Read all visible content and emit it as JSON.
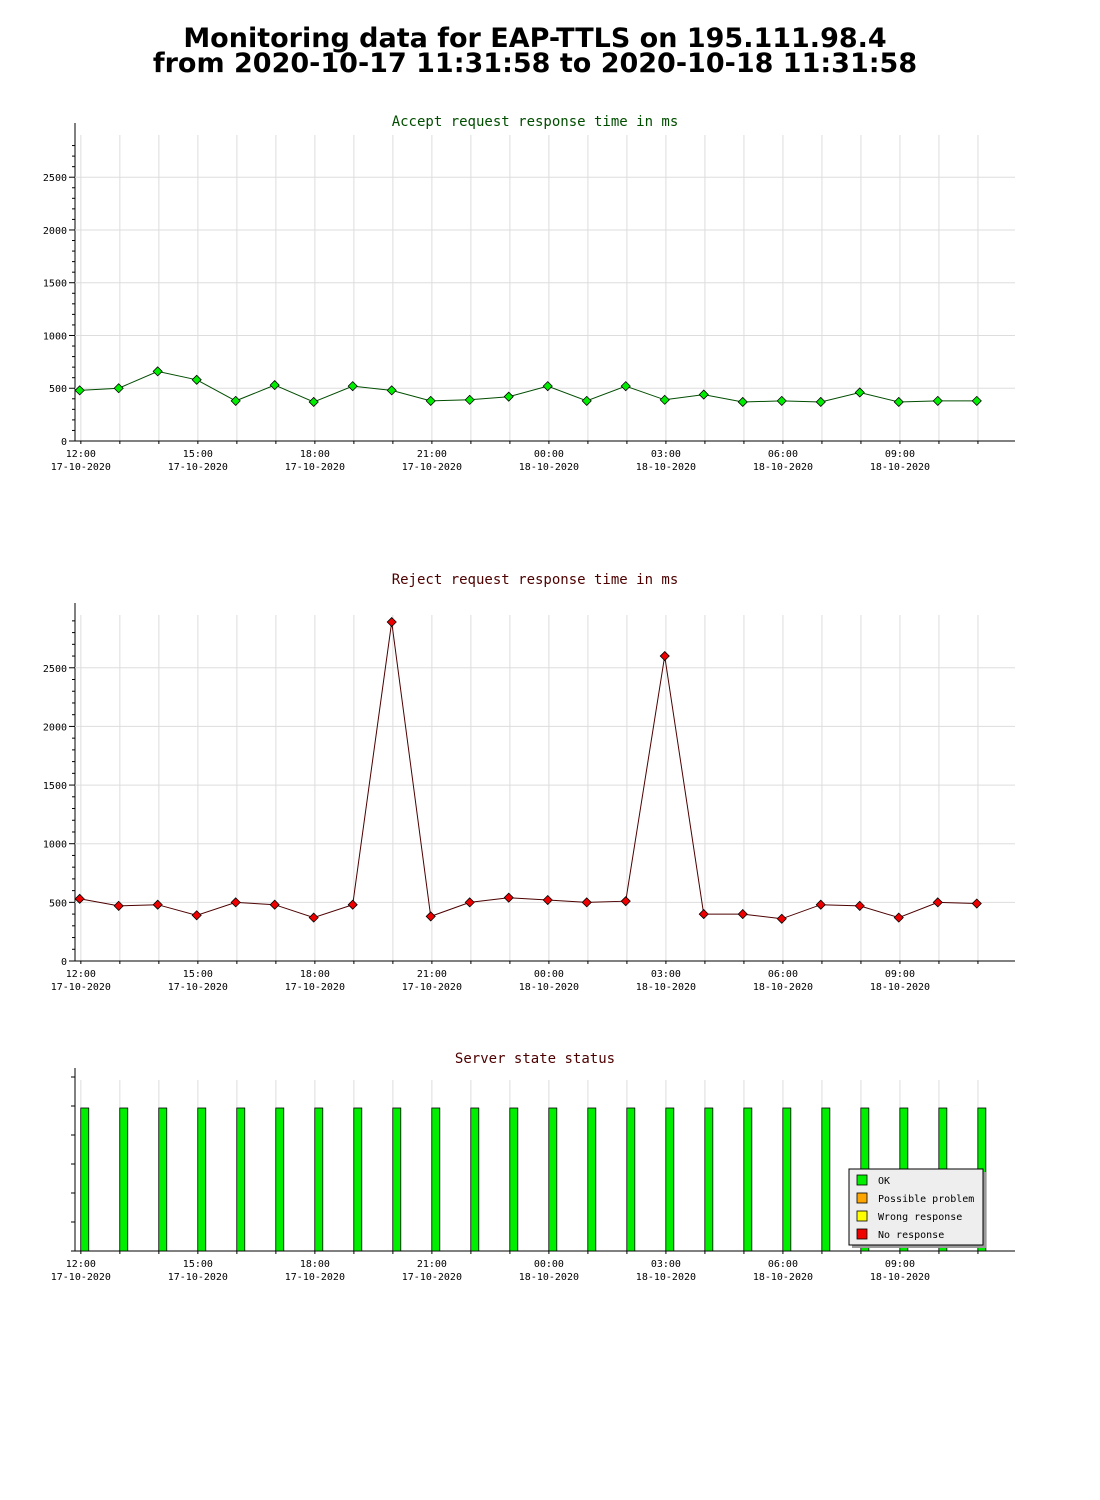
{
  "page": {
    "title_line1": "Monitoring data for EAP-TTLS on 195.111.98.4",
    "title_line2": "from 2020-10-17 11:31:58 to 2020-10-18 11:31:58"
  },
  "chart_data": [
    {
      "id": "accept",
      "type": "line",
      "title": "Accept request response time in ms",
      "title_color": "#004d00",
      "marker_color": "#00ee00",
      "line_color": "#004d00",
      "ylim": [
        0,
        2900
      ],
      "yticks": [
        0,
        500,
        1000,
        1500,
        2000,
        2500
      ],
      "xlim": [
        11.85,
        35.95
      ],
      "xticks": [
        {
          "x": 12,
          "time": "12:00",
          "date": "17-10-2020"
        },
        {
          "x": 15,
          "time": "15:00",
          "date": "17-10-2020"
        },
        {
          "x": 18,
          "time": "18:00",
          "date": "17-10-2020"
        },
        {
          "x": 21,
          "time": "21:00",
          "date": "17-10-2020"
        },
        {
          "x": 24,
          "time": "00:00",
          "date": "18-10-2020"
        },
        {
          "x": 27,
          "time": "03:00",
          "date": "18-10-2020"
        },
        {
          "x": 30,
          "time": "06:00",
          "date": "18-10-2020"
        },
        {
          "x": 33,
          "time": "09:00",
          "date": "18-10-2020"
        }
      ],
      "grid": true,
      "x": [
        11.97,
        12.97,
        13.97,
        14.97,
        15.97,
        16.97,
        17.97,
        18.97,
        19.97,
        20.97,
        21.97,
        22.97,
        23.97,
        24.97,
        25.97,
        26.97,
        27.97,
        28.97,
        29.97,
        30.97,
        31.97,
        32.97,
        33.97,
        34.97
      ],
      "y": [
        480,
        500,
        660,
        580,
        380,
        530,
        370,
        520,
        480,
        380,
        390,
        420,
        520,
        380,
        520,
        390,
        440,
        370,
        380,
        370,
        460,
        370,
        380,
        380
      ]
    },
    {
      "id": "reject",
      "type": "line",
      "title": "Reject request response time in ms",
      "title_color": "#4d0000",
      "marker_color": "#ee0000",
      "line_color": "#4d0000",
      "ylim": [
        0,
        2950
      ],
      "yticks": [
        0,
        500,
        1000,
        1500,
        2000,
        2500
      ],
      "xlim": [
        11.85,
        35.95
      ],
      "xticks": [
        {
          "x": 12,
          "time": "12:00",
          "date": "17-10-2020"
        },
        {
          "x": 15,
          "time": "15:00",
          "date": "17-10-2020"
        },
        {
          "x": 18,
          "time": "18:00",
          "date": "17-10-2020"
        },
        {
          "x": 21,
          "time": "21:00",
          "date": "17-10-2020"
        },
        {
          "x": 24,
          "time": "00:00",
          "date": "18-10-2020"
        },
        {
          "x": 27,
          "time": "03:00",
          "date": "18-10-2020"
        },
        {
          "x": 30,
          "time": "06:00",
          "date": "18-10-2020"
        },
        {
          "x": 33,
          "time": "09:00",
          "date": "18-10-2020"
        }
      ],
      "grid": true,
      "x": [
        11.97,
        12.97,
        13.97,
        14.97,
        15.97,
        16.97,
        17.97,
        18.97,
        19.97,
        20.97,
        21.97,
        22.97,
        23.97,
        24.97,
        25.97,
        26.97,
        27.97,
        28.97,
        29.97,
        30.97,
        31.97,
        32.97,
        33.97,
        34.97
      ],
      "y": [
        530,
        470,
        480,
        390,
        500,
        480,
        370,
        480,
        2890,
        380,
        500,
        540,
        520,
        500,
        510,
        2600,
        400,
        400,
        360,
        480,
        470,
        370,
        500,
        490
      ]
    },
    {
      "id": "status",
      "type": "bar",
      "title": "Server state status",
      "title_color": "#4d0000",
      "xlim": [
        11.85,
        35.95
      ],
      "xticks": [
        {
          "x": 12,
          "time": "12:00",
          "date": "17-10-2020"
        },
        {
          "x": 15,
          "time": "15:00",
          "date": "17-10-2020"
        },
        {
          "x": 18,
          "time": "18:00",
          "date": "17-10-2020"
        },
        {
          "x": 21,
          "time": "21:00",
          "date": "17-10-2020"
        },
        {
          "x": 24,
          "time": "00:00",
          "date": "18-10-2020"
        },
        {
          "x": 27,
          "time": "03:00",
          "date": "18-10-2020"
        },
        {
          "x": 30,
          "time": "06:00",
          "date": "18-10-2020"
        },
        {
          "x": 33,
          "time": "09:00",
          "date": "18-10-2020"
        }
      ],
      "x": [
        12.1,
        13.1,
        14.1,
        15.1,
        16.1,
        17.1,
        18.1,
        19.1,
        20.1,
        21.1,
        22.1,
        23.1,
        24.1,
        25.1,
        26.1,
        27.1,
        28.1,
        29.1,
        30.1,
        31.1,
        32.1,
        33.1,
        34.1,
        35.1
      ],
      "values": [
        "OK",
        "OK",
        "OK",
        "OK",
        "OK",
        "OK",
        "OK",
        "OK",
        "OK",
        "OK",
        "OK",
        "OK",
        "OK",
        "OK",
        "OK",
        "OK",
        "OK",
        "OK",
        "OK",
        "OK",
        "OK",
        "OK",
        "OK",
        "OK"
      ],
      "legend": {
        "placement": "bottom-right",
        "items": [
          {
            "label": "OK",
            "color": "#00ee00"
          },
          {
            "label": "Possible problem",
            "color": "#ffa500"
          },
          {
            "label": "Wrong response",
            "color": "#ffff00"
          },
          {
            "label": "No response",
            "color": "#ee0000"
          }
        ]
      }
    }
  ]
}
